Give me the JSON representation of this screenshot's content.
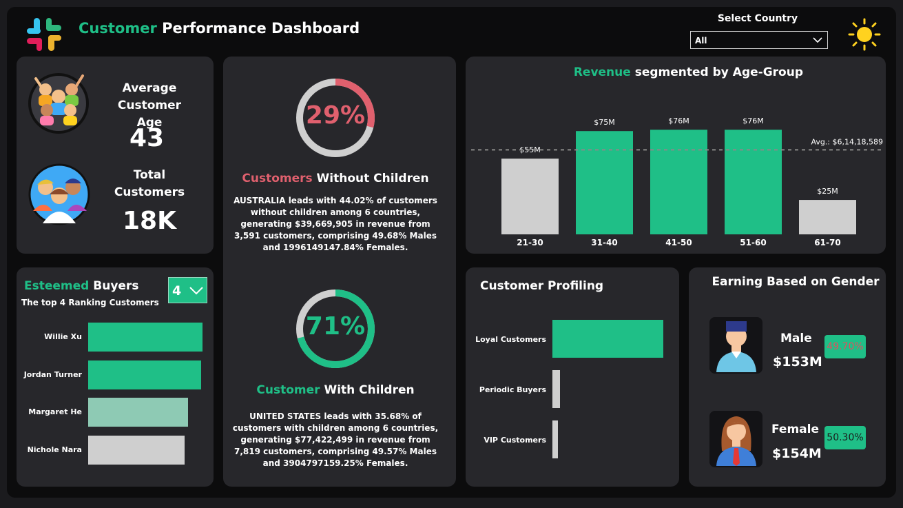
{
  "header": {
    "title_accent": "Customer",
    "title_rest": " Performance Dashboard",
    "select_label": "Select Country",
    "select_value": "All"
  },
  "stats": {
    "avg_age_label_1": "Average",
    "avg_age_label_2": "Customer Age",
    "avg_age_value": "43",
    "total_label_1": "Total",
    "total_label_2": "Customers",
    "total_value": "18K"
  },
  "donut_without": {
    "percent": 29,
    "percent_label": "29%",
    "title_accent": "Customers",
    "title_rest": " Without Children",
    "description": "AUSTRALIA leads with 44.02% of customers without children among 6 countries, generating $39,669,905 in revenue from 3,591 customers, comprising 49.68% Males and 1996149147.84% Females.",
    "color": "#e0606e"
  },
  "donut_with": {
    "percent": 71,
    "percent_label": "71%",
    "title_accent": "Customer",
    "title_rest": " With Children",
    "description": "UNITED STATES leads with 35.68% of customers with children among 6 countries, generating $77,422,499 in revenue from 7,819 customers, comprising 49.57% Males and 3904797159.25% Females.",
    "color": "#1fbf87"
  },
  "revenue_title_accent": "Revenue",
  "revenue_title_rest": " segmented by Age-Group",
  "chart_data": {
    "type": "bar",
    "categories": [
      "21-30",
      "31-40",
      "41-50",
      "51-60",
      "61-70"
    ],
    "values": [
      55,
      75,
      76,
      76,
      25
    ],
    "data_labels": [
      "$55M",
      "$75M",
      "$76M",
      "$76M",
      "$25M"
    ],
    "colors": [
      "#cfcfcf",
      "#1fbf87",
      "#1fbf87",
      "#1fbf87",
      "#cfcfcf"
    ],
    "average": 61.4,
    "average_label": "Avg.: $6,14,18,589",
    "ylim": [
      0,
      80
    ]
  },
  "buyers": {
    "title_accent": "Esteemed",
    "title_rest": " Buyers",
    "subtitle": "The top 4 Ranking Customers",
    "count": "4",
    "items": [
      {
        "name": "Willie Xu",
        "value": 100,
        "color": "#1fbf87"
      },
      {
        "name": "Jordan Turner",
        "value": 98.5,
        "color": "#1fbf87"
      },
      {
        "name": "Margaret He",
        "value": 87.5,
        "color": "#8ecab4"
      },
      {
        "name": "Nichole Nara",
        "value": 84.5,
        "color": "#cfcfcf"
      }
    ]
  },
  "profiling": {
    "title": "Customer Profiling",
    "items": [
      {
        "name": "Loyal Customers",
        "value": 100,
        "color": "#1fbf87"
      },
      {
        "name": "Periodic Buyers",
        "value": 7,
        "color": "#cfcfcf"
      },
      {
        "name": "VIP Customers",
        "value": 5,
        "color": "#cfcfcf"
      }
    ]
  },
  "gender": {
    "title": "Earning Based on Gender",
    "male_label": "Male",
    "male_value": "$153M",
    "male_pct": "49.70%",
    "male_pct_color": "#e0505e",
    "female_label": "Female",
    "female_value": "$154M",
    "female_pct": "50.30%",
    "female_pct_color": "#1b1b1b"
  },
  "icons": {
    "logo": "slack-logo-icon",
    "theme": "sun-icon",
    "avg_age": "crowd-icon",
    "total": "group-icon",
    "male": "male-user-icon",
    "female": "female-user-icon"
  }
}
